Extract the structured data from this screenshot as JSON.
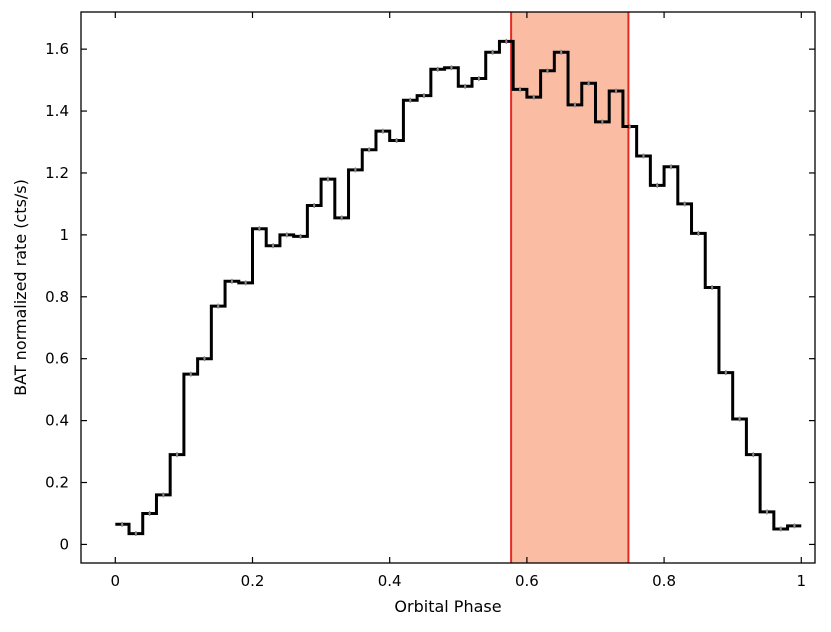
{
  "chart_data": {
    "type": "line",
    "style": "step",
    "title": "",
    "xlabel": "Orbital Phase",
    "ylabel": "BAT normalized rate (cts/s)",
    "xlim": [
      -0.05,
      1.02
    ],
    "ylim": [
      -0.06,
      1.72
    ],
    "xticks": [
      0,
      0.2,
      0.4,
      0.6,
      0.8,
      1
    ],
    "xtick_labels": [
      "0",
      "0.2",
      "0.4",
      "0.6",
      "0.8",
      "1"
    ],
    "yticks": [
      0,
      0.2,
      0.4,
      0.6,
      0.8,
      1,
      1.2,
      1.4,
      1.6
    ],
    "ytick_labels": [
      "0",
      "0.2",
      "0.4",
      "0.6",
      "0.8",
      "1",
      "1.2",
      "1.4",
      "1.6"
    ],
    "grid": false,
    "bin_width": 0.02,
    "series": [
      {
        "color": "#000000",
        "x": [
          0,
          0.02,
          0.04,
          0.06,
          0.08,
          0.1,
          0.12,
          0.14,
          0.16,
          0.18,
          0.2,
          0.22,
          0.24,
          0.26,
          0.28,
          0.3,
          0.32,
          0.34,
          0.36,
          0.38,
          0.4,
          0.42,
          0.44,
          0.46,
          0.48,
          0.5,
          0.52,
          0.54,
          0.56,
          0.58,
          0.6,
          0.62,
          0.64,
          0.66,
          0.68,
          0.7,
          0.72,
          0.74,
          0.76,
          0.78,
          0.8,
          0.82,
          0.84,
          0.86,
          0.88,
          0.9,
          0.92,
          0.94,
          0.96,
          0.98
        ],
        "y": [
          0.065,
          0.035,
          0.1,
          0.16,
          0.29,
          0.55,
          0.6,
          0.77,
          0.85,
          0.845,
          1.02,
          0.965,
          1.0,
          0.995,
          1.095,
          1.18,
          1.055,
          1.21,
          1.275,
          1.335,
          1.305,
          1.435,
          1.45,
          1.535,
          1.54,
          1.48,
          1.505,
          1.59,
          1.625,
          1.47,
          1.445,
          1.53,
          1.59,
          1.42,
          1.49,
          1.365,
          1.465,
          1.35,
          1.255,
          1.16,
          1.22,
          1.1,
          1.005,
          0.83,
          0.555,
          0.405,
          0.29,
          0.105,
          0.05,
          0.06
        ],
        "error": 0.008
      }
    ],
    "shaded_region": {
      "x_start": 0.577,
      "x_end": 0.748,
      "fill_color": "#fbbca4",
      "edge_color": "#e32b21"
    },
    "colors": {
      "series_line": "#000000",
      "error_bars": "#8a8a8a",
      "shade_fill": "#fbbca4",
      "shade_edge": "#e32b21"
    }
  }
}
